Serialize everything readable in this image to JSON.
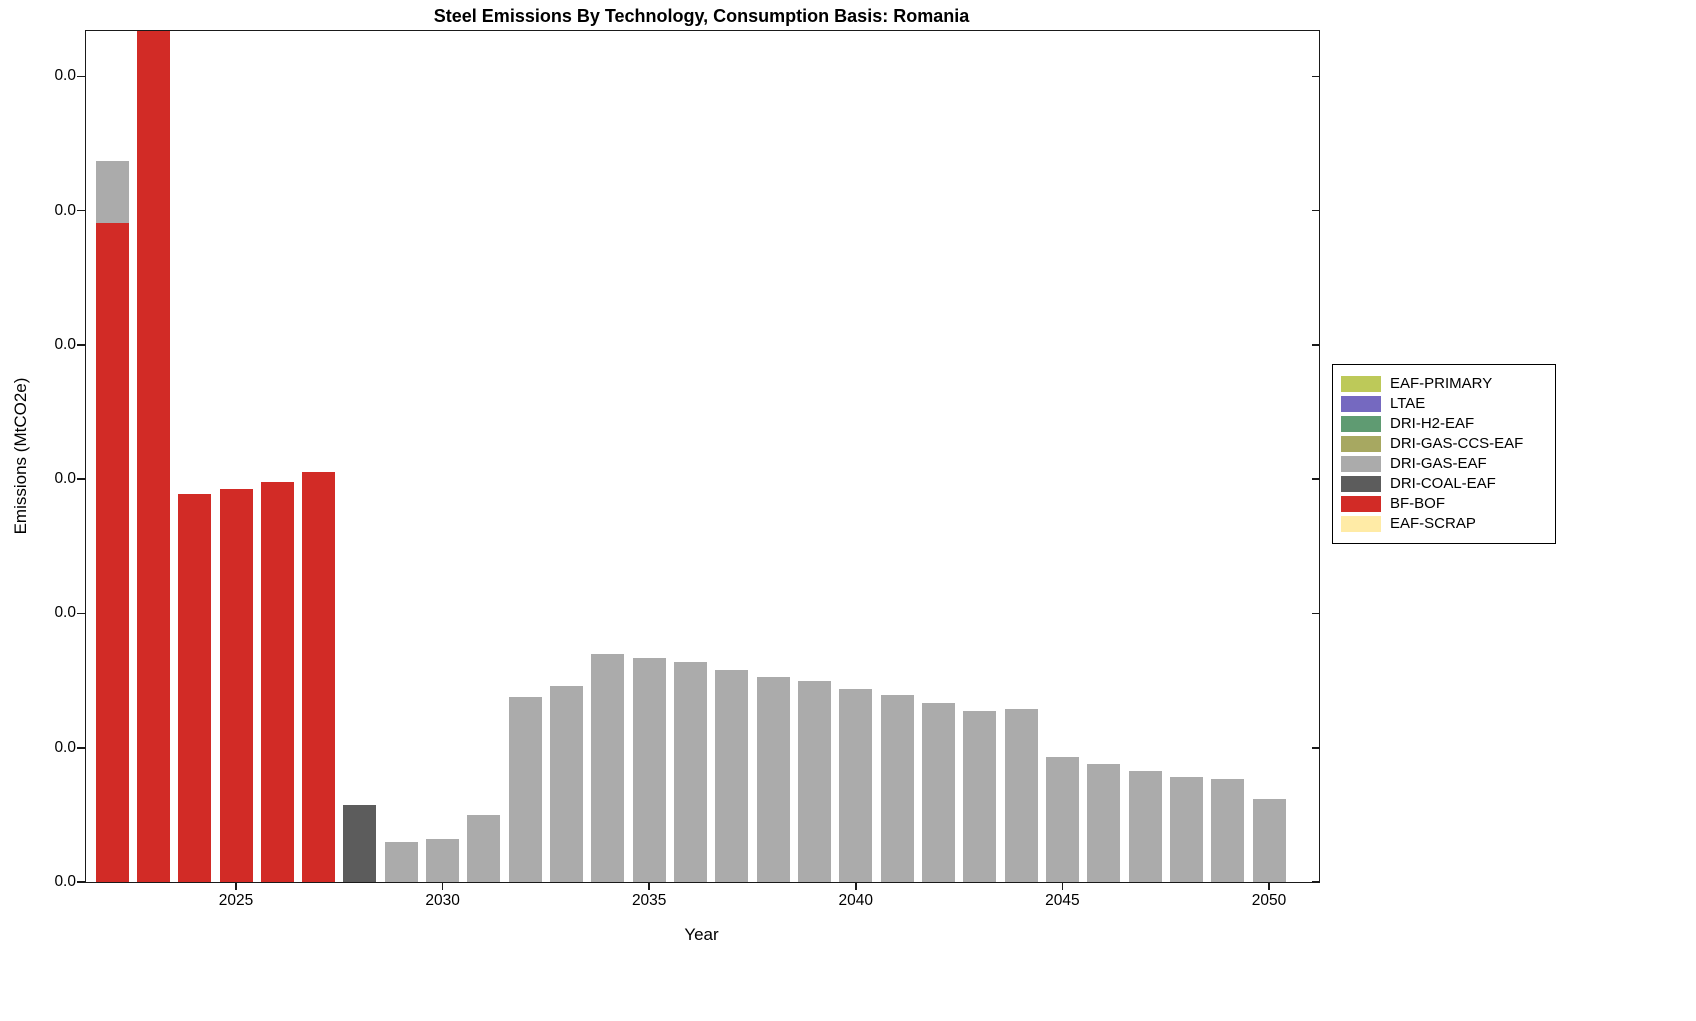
{
  "title": "Steel Emissions By Technology, Consumption Basis: Romania",
  "xlabel": "Year",
  "ylabel": "Emissions (MtCO2e)",
  "legend": {
    "entries": [
      {
        "label": "EAF-PRIMARY",
        "color": "#bdc959"
      },
      {
        "label": "LTAE",
        "color": "#7569c0"
      },
      {
        "label": "DRI-H2-EAF",
        "color": "#5f9b72"
      },
      {
        "label": "DRI-GAS-CCS-EAF",
        "color": "#a7a861"
      },
      {
        "label": "DRI-GAS-EAF",
        "color": "#ababab"
      },
      {
        "label": "DRI-COAL-EAF",
        "color": "#5c5c5c"
      },
      {
        "label": "BF-BOF",
        "color": "#d22b26"
      },
      {
        "label": "EAF-SCRAP",
        "color": "#ffeba6"
      }
    ]
  },
  "chart_data": {
    "type": "bar",
    "stacked": true,
    "x": [
      2022,
      2023,
      2024,
      2025,
      2026,
      2027,
      2028,
      2029,
      2030,
      2031,
      2032,
      2033,
      2034,
      2035,
      2036,
      2037,
      2038,
      2039,
      2040,
      2041,
      2042,
      2043,
      2044,
      2045,
      2046,
      2047,
      2048,
      2049,
      2050
    ],
    "series": [
      {
        "name": "BF-BOF",
        "color": "#d22b26",
        "values": [
          4.91,
          6.4,
          2.89,
          2.93,
          2.98,
          3.05,
          0,
          0,
          0,
          0,
          0,
          0,
          0,
          0,
          0,
          0,
          0,
          0,
          0,
          0,
          0,
          0,
          0,
          0,
          0,
          0,
          0,
          0,
          0
        ]
      },
      {
        "name": "DRI-COAL-EAF",
        "color": "#5c5c5c",
        "values": [
          0,
          0,
          0,
          0,
          0,
          0,
          0.57,
          0,
          0,
          0,
          0,
          0,
          0,
          0,
          0,
          0,
          0,
          0,
          0,
          0,
          0,
          0,
          0,
          0,
          0,
          0,
          0,
          0,
          0
        ]
      },
      {
        "name": "DRI-GAS-EAF",
        "color": "#ababab",
        "values": [
          0.46,
          0,
          0,
          0,
          0,
          0,
          0,
          0.3,
          0.32,
          0.5,
          1.38,
          1.46,
          1.7,
          1.67,
          1.64,
          1.58,
          1.53,
          1.5,
          1.44,
          1.39,
          1.33,
          1.27,
          1.29,
          0.93,
          0.88,
          0.83,
          0.78,
          0.77,
          0.62
        ]
      }
    ],
    "value_unit": "y-axis gridline spacings (tick labels all render as 0.0)",
    "ylim": [
      0,
      6.34
    ],
    "ytick_labels": [
      "0.0",
      "0.0",
      "0.0",
      "0.0",
      "0.0",
      "0.0",
      "0.0"
    ],
    "xticks": [
      2025,
      2030,
      2035,
      2040,
      2045,
      2050
    ],
    "grid": false,
    "legend_position": "outside-right",
    "bar_clipped_at_top": [
      2023
    ]
  }
}
